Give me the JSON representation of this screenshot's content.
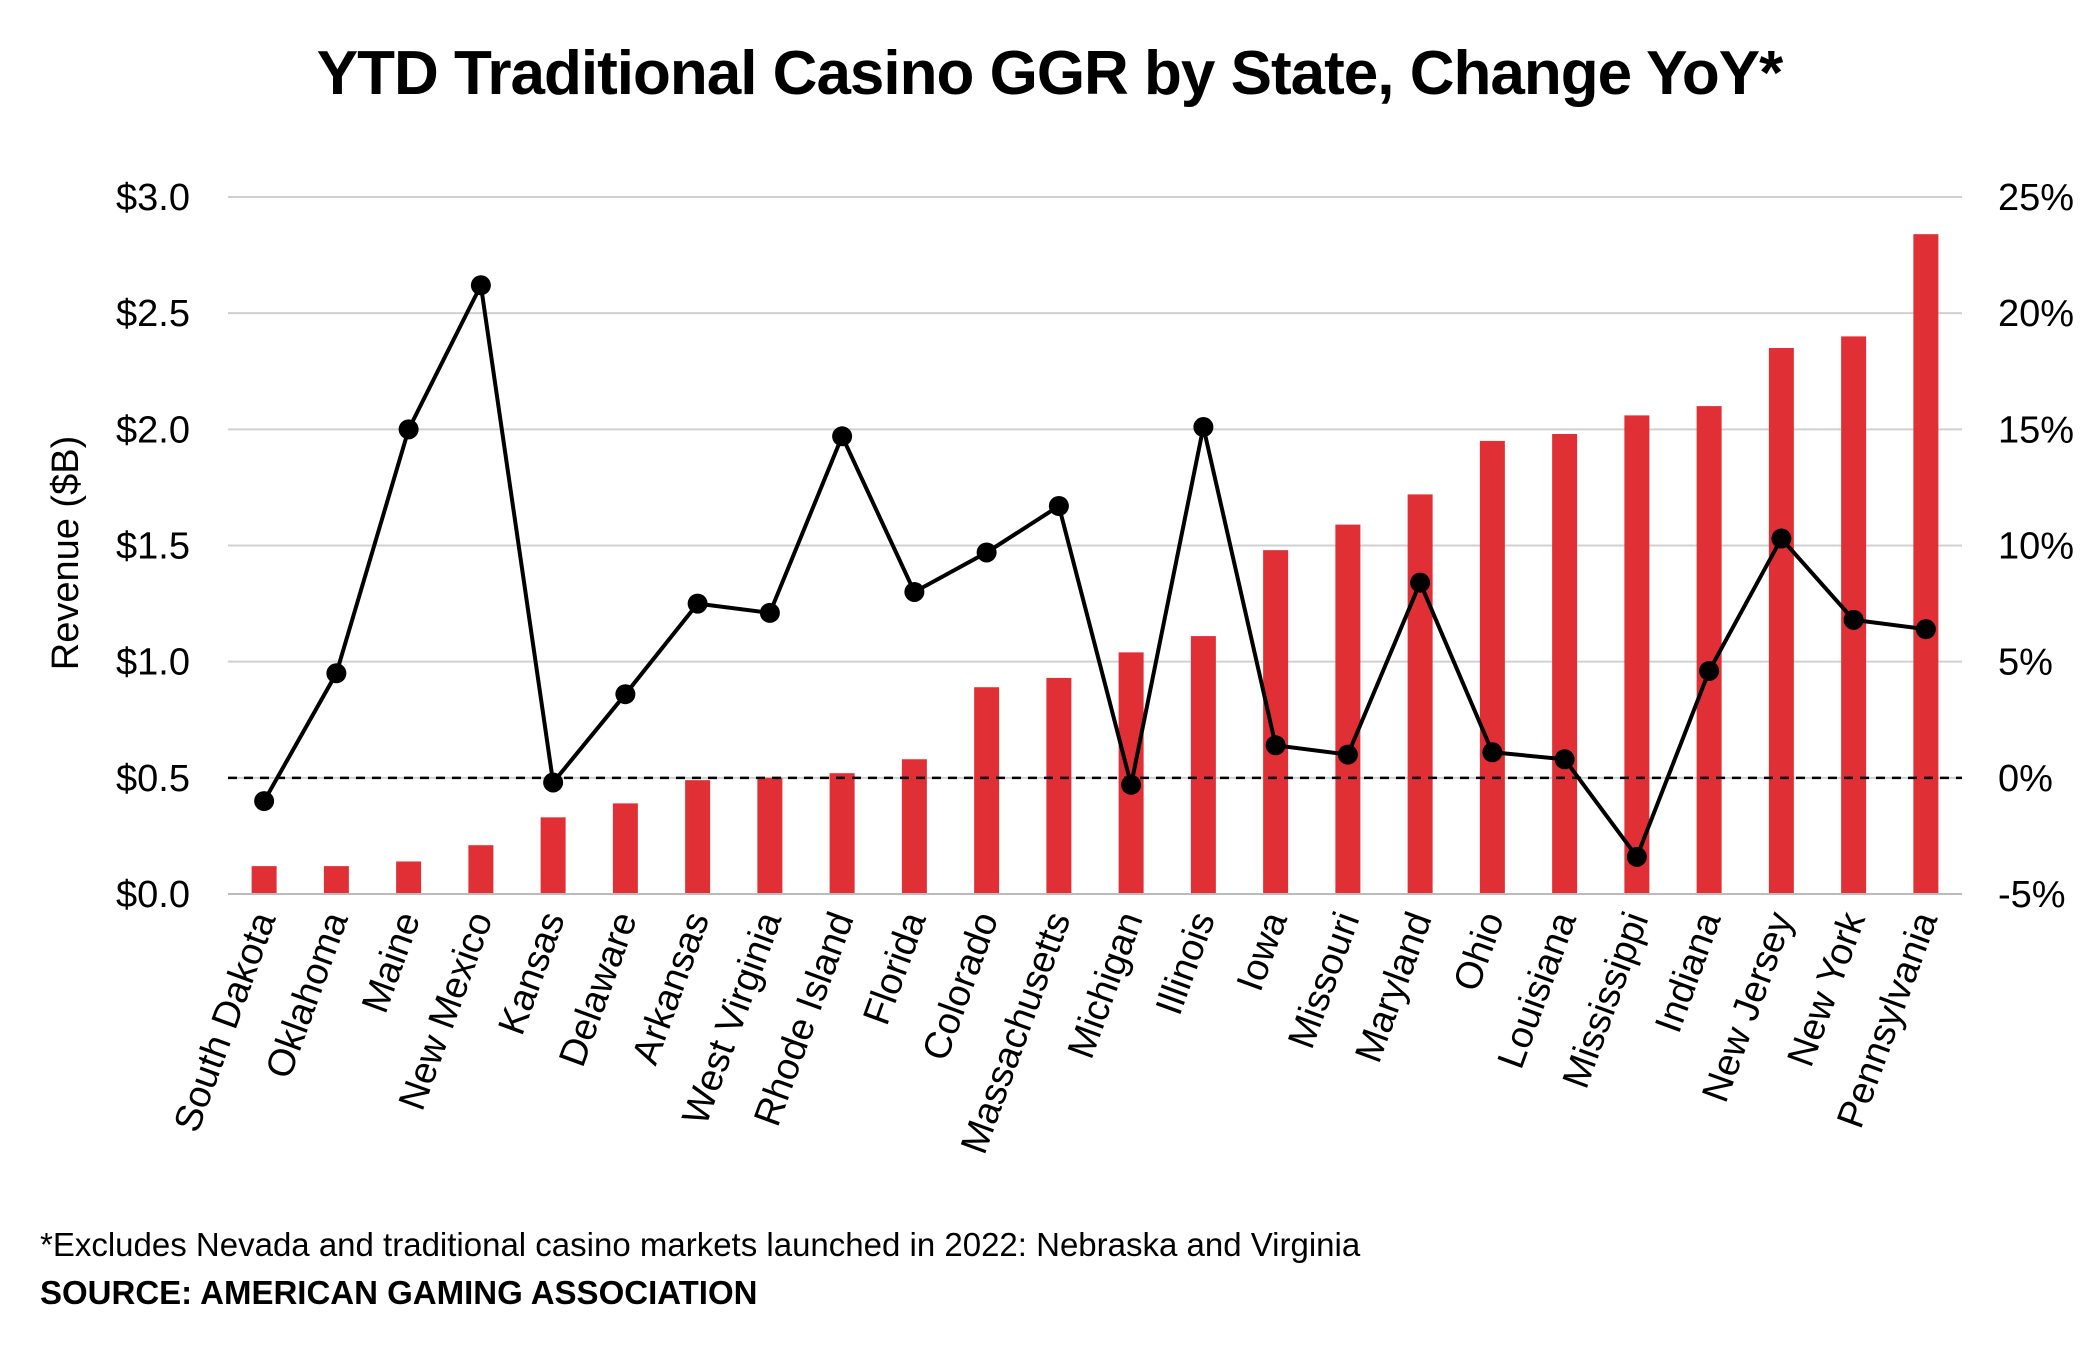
{
  "title": "YTD Traditional Casino GGR by State, Change YoY*",
  "footnote": "*Excludes Nevada and traditional casino markets launched in 2022: Nebraska and Virginia",
  "source": "SOURCE: AMERICAN GAMING ASSOCIATION",
  "colors": {
    "bar": "#e03036",
    "line": "#000000",
    "grid": "#d0d0d0",
    "axis": "#000000"
  },
  "chart_data": {
    "type": "bar",
    "title": "YTD Traditional Casino GGR by State, Change YoY*",
    "categories": [
      "South Dakota",
      "Oklahoma",
      "Maine",
      "New Mexico",
      "Kansas",
      "Delaware",
      "Arkansas",
      "West Virginia",
      "Rhode Island",
      "Florida",
      "Colorado",
      "Massachusetts",
      "Michigan",
      "Illinois",
      "Iowa",
      "Missouri",
      "Maryland",
      "Ohio",
      "Louisiana",
      "Mississippi",
      "Indiana",
      "New Jersey",
      "New York",
      "Pennsylvania"
    ],
    "series": [
      {
        "name": "",
        "type": "bar",
        "axis": "left",
        "values": [
          0.12,
          0.12,
          0.14,
          0.21,
          0.33,
          0.39,
          0.49,
          0.5,
          0.52,
          0.58,
          0.89,
          0.93,
          1.04,
          1.11,
          1.48,
          1.59,
          1.72,
          1.95,
          1.98,
          2.06,
          2.1,
          2.35,
          2.4,
          2.84
        ]
      },
      {
        "name": "",
        "type": "line",
        "axis": "right",
        "values": [
          -1.0,
          4.5,
          15.0,
          21.2,
          -0.2,
          3.6,
          7.5,
          7.1,
          14.7,
          8.0,
          9.7,
          11.7,
          -0.3,
          15.1,
          1.4,
          1.0,
          8.4,
          1.1,
          0.8,
          -3.4,
          4.6,
          10.3,
          6.8,
          6.4
        ]
      }
    ],
    "ylabel": "Revenue ($B)",
    "xlabel": "",
    "ylim": [
      0,
      3.0
    ],
    "yticks": [
      "$0.0",
      "$0.5",
      "$1.0",
      "$1.5",
      "$2.0",
      "$2.5",
      "$3.0"
    ],
    "y2lim": [
      -5,
      25
    ],
    "y2ticks": [
      "-5%",
      "0%",
      "5%",
      "10%",
      "15%",
      "20%",
      "25%"
    ],
    "reference_line": {
      "axis": "right",
      "value": 0,
      "style": "dashed"
    },
    "grid": true,
    "legend": "none"
  }
}
